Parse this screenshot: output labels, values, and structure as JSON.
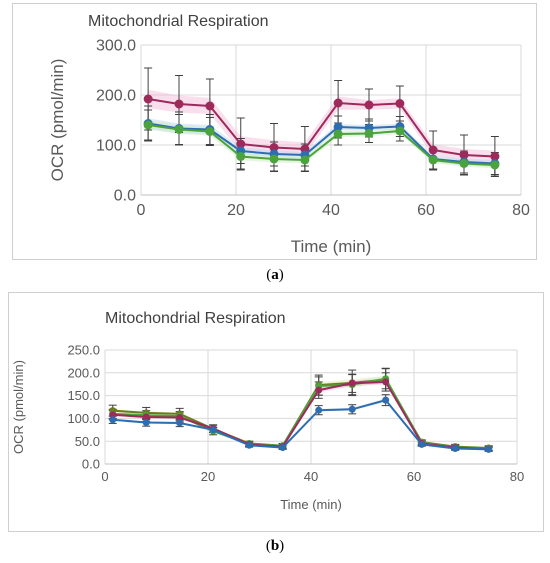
{
  "captions": {
    "a_open": "(",
    "a_letter": "a",
    "a_close": ")",
    "b_open": "(",
    "b_letter": "b",
    "b_close": ")"
  },
  "chart_data": [
    {
      "type": "line",
      "title": "Mitochondrial Respiration",
      "xlabel": "Time (min)",
      "ylabel": "OCR (pmol/min)",
      "xlim": [
        0,
        80
      ],
      "ylim": [
        0,
        300
      ],
      "x_ticks": [
        0,
        20,
        40,
        60,
        80
      ],
      "y_ticks": [
        0,
        100,
        200,
        300
      ],
      "y_tick_labels": [
        "0.0",
        "100.0",
        "200.0",
        "300.0"
      ],
      "grid": true,
      "legend": "none",
      "x": [
        1.5,
        8,
        14.5,
        21,
        28,
        34.5,
        41.5,
        48,
        54.5,
        61.5,
        68,
        74.5
      ],
      "series": [
        {
          "color": "#9e2a5c",
          "shade": "#f2b8d6",
          "values": [
            192,
            182,
            178,
            102,
            95,
            92,
            184,
            180,
            183,
            90,
            80,
            77
          ],
          "err": [
            62,
            57,
            54,
            52,
            48,
            45,
            45,
            32,
            35,
            38,
            40,
            40
          ]
        },
        {
          "color": "#2e6db0",
          "shade": "#b8d4f0",
          "values": [
            143,
            133,
            131,
            88,
            82,
            80,
            136,
            134,
            137,
            72,
            66,
            63
          ],
          "err": [
            35,
            33,
            30,
            25,
            24,
            22,
            22,
            18,
            20,
            20,
            22,
            22
          ]
        },
        {
          "color": "#4aa33c",
          "shade": "#c5e8bd",
          "values": [
            140,
            131,
            127,
            77,
            72,
            70,
            122,
            123,
            128,
            70,
            63,
            60
          ],
          "err": [
            30,
            30,
            28,
            25,
            24,
            22,
            22,
            18,
            20,
            20,
            22,
            22
          ]
        }
      ]
    },
    {
      "type": "line",
      "title": "Mitochondrial Respiration",
      "xlabel": "Time (min)",
      "ylabel": "OCR (pmol/min)",
      "xlim": [
        0,
        80
      ],
      "ylim": [
        0,
        250
      ],
      "x_ticks": [
        0,
        20,
        40,
        60,
        80
      ],
      "y_ticks": [
        0,
        50,
        100,
        150,
        200,
        250
      ],
      "y_tick_labels": [
        "0.0",
        "50.0",
        "100.0",
        "150.0",
        "200.0",
        "250.0"
      ],
      "grid": true,
      "legend": "none",
      "x": [
        1.5,
        8,
        14.5,
        21,
        28,
        34.5,
        41.5,
        48,
        54.5,
        61.5,
        68,
        74.5
      ],
      "series": [
        {
          "color": "#6b7a1f",
          "shade": "#e0e8b0",
          "values": [
            117,
            112,
            110,
            77,
            45,
            40,
            173,
            178,
            185,
            48,
            38,
            35
          ],
          "err": [
            12,
            12,
            12,
            8,
            5,
            5,
            22,
            28,
            25,
            5,
            5,
            5
          ]
        },
        {
          "color": "#4aa33c",
          "shade": "#c5e8bd",
          "values": [
            110,
            107,
            105,
            72,
            44,
            40,
            171,
            174,
            187,
            47,
            37,
            34
          ],
          "err": [
            10,
            10,
            10,
            8,
            5,
            5,
            20,
            22,
            22,
            5,
            5,
            5
          ]
        },
        {
          "color": "#9e2a5c",
          "shade": "#f2b8d6",
          "values": [
            108,
            103,
            102,
            78,
            43,
            38,
            162,
            177,
            180,
            45,
            36,
            33
          ],
          "err": [
            10,
            10,
            10,
            8,
            5,
            5,
            18,
            20,
            20,
            5,
            5,
            5
          ]
        },
        {
          "color": "#2e6db0",
          "shade": "#b8d4f0",
          "values": [
            97,
            91,
            90,
            75,
            41,
            36,
            118,
            120,
            140,
            43,
            34,
            32
          ],
          "err": [
            8,
            8,
            8,
            6,
            4,
            4,
            10,
            10,
            12,
            4,
            4,
            4
          ]
        }
      ]
    }
  ]
}
